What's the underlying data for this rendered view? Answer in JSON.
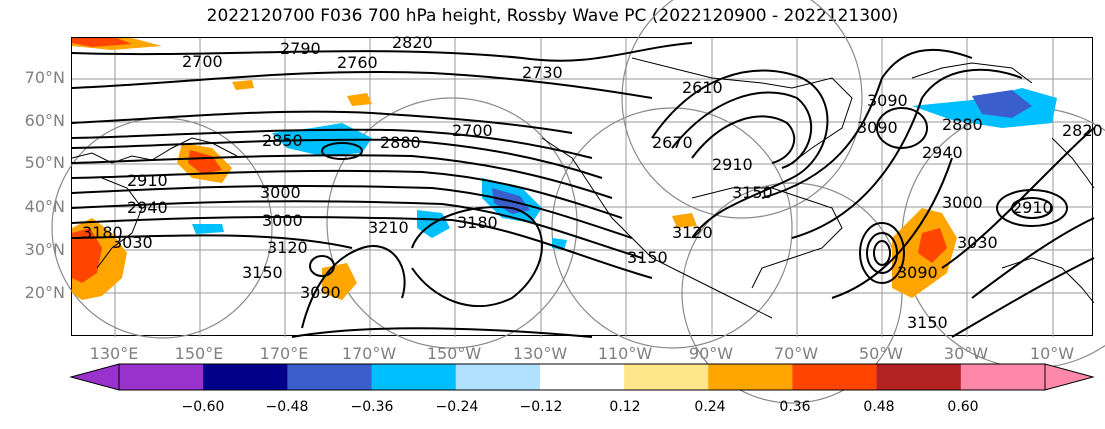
{
  "title": "2022120700 F036 700 hPa height, Rossby Wave PC (2022120900 - 2022121300)",
  "lat_labels": [
    "70°N",
    "60°N",
    "50°N",
    "40°N",
    "30°N",
    "20°N"
  ],
  "lon_labels": [
    "130°E",
    "150°E",
    "170°E",
    "170°W",
    "150°W",
    "130°W",
    "110°W",
    "90°W",
    "70°W",
    "50°W",
    "30°W",
    "10°W"
  ],
  "contour_labels": [
    "2820",
    "2790",
    "2700",
    "2760",
    "2730",
    "2610",
    "2670",
    "3090",
    "2700",
    "2880",
    "2850",
    "3000",
    "2910",
    "2940",
    "3000",
    "3120",
    "3210",
    "3180",
    "3150",
    "3090",
    "3030",
    "3150",
    "2910",
    "3090",
    "2880",
    "2820",
    "3090",
    "3120",
    "3150",
    "3030",
    "2940",
    "3000",
    "2910",
    "3180",
    "3150"
  ],
  "colorbar": {
    "ticks": [
      "−0.60",
      "−0.48",
      "−0.36",
      "−0.24",
      "−0.12",
      "0.12",
      "0.24",
      "0.36",
      "0.48",
      "0.60"
    ],
    "colors": [
      "#9932cc",
      "#00008b",
      "#3a5fcd",
      "#00bfff",
      "#b0e2ff",
      "#ffffff",
      "#ffe68a",
      "#ffa500",
      "#ff4500",
      "#b22222",
      "#ff88aa",
      "#ff88aa"
    ],
    "under_color": "#9932cc",
    "over_color": "#ff88aa"
  }
}
